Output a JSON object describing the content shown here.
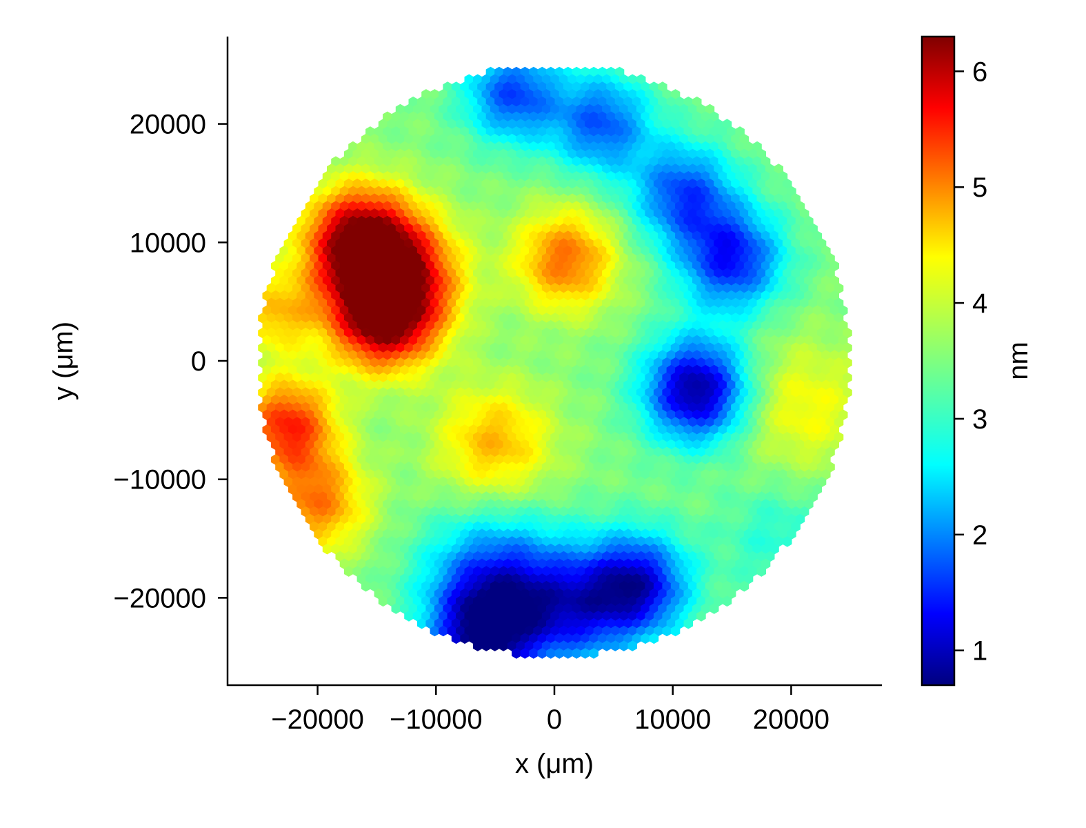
{
  "chart_data": {
    "type": "heatmap",
    "subtype": "hexbin-wafer-map",
    "title": "",
    "xlabel": "x (μm)",
    "ylabel": "y (μm)",
    "xlim": [
      -27500,
      27500
    ],
    "ylim": [
      -27500,
      27500
    ],
    "x_ticks": [
      -20000,
      -10000,
      0,
      10000,
      20000
    ],
    "x_tick_labels": [
      "−20000",
      "−10000",
      "0",
      "10000",
      "20000"
    ],
    "y_ticks": [
      -20000,
      -10000,
      0,
      10000,
      20000
    ],
    "y_tick_labels": [
      "−20000",
      "−10000",
      "0",
      "10000",
      "20000"
    ],
    "wafer_radius": 25000,
    "grid": false,
    "colormap": "jet",
    "colorbar": {
      "label": "nm",
      "range": [
        0.7,
        6.3
      ],
      "ticks": [
        1,
        2,
        3,
        4,
        5,
        6
      ],
      "tick_labels": [
        "1",
        "2",
        "3",
        "4",
        "5",
        "6"
      ],
      "placement": "right"
    },
    "baseline_value": 3.5,
    "features": [
      {
        "x": -16500,
        "y": 10000,
        "value": 6.2,
        "sigma": 3200
      },
      {
        "x": -14500,
        "y": 3500,
        "value": 5.9,
        "sigma": 3000
      },
      {
        "x": -13000,
        "y": 7000,
        "value": 5.6,
        "sigma": 3500
      },
      {
        "x": -22500,
        "y": -5500,
        "value": 5.4,
        "sigma": 2800
      },
      {
        "x": -20000,
        "y": -12000,
        "value": 4.9,
        "sigma": 3000
      },
      {
        "x": -23500,
        "y": 4000,
        "value": 4.5,
        "sigma": 2500
      },
      {
        "x": 1000,
        "y": 8500,
        "value": 5.0,
        "sigma": 3000
      },
      {
        "x": -5000,
        "y": -7000,
        "value": 4.6,
        "sigma": 3500
      },
      {
        "x": 21000,
        "y": -4000,
        "value": 4.2,
        "sigma": 4000
      },
      {
        "x": 12000,
        "y": -2500,
        "value": 0.8,
        "sigma": 3000
      },
      {
        "x": 15000,
        "y": 8500,
        "value": 1.5,
        "sigma": 3000
      },
      {
        "x": 11000,
        "y": 14000,
        "value": 1.8,
        "sigma": 3000
      },
      {
        "x": -3500,
        "y": 22500,
        "value": 1.8,
        "sigma": 2800
      },
      {
        "x": 4000,
        "y": 20000,
        "value": 1.9,
        "sigma": 3000
      },
      {
        "x": 7000,
        "y": -19000,
        "value": 1.2,
        "sigma": 3000
      },
      {
        "x": -5000,
        "y": -19000,
        "value": 1.6,
        "sigma": 4000
      },
      {
        "x": -6000,
        "y": -23500,
        "value": 1.4,
        "sigma": 3000
      },
      {
        "x": 1500,
        "y": -21000,
        "value": 1.8,
        "sigma": 3500
      },
      {
        "x": 19000,
        "y": -15000,
        "value": 3.0,
        "sigma": 3500
      }
    ]
  }
}
